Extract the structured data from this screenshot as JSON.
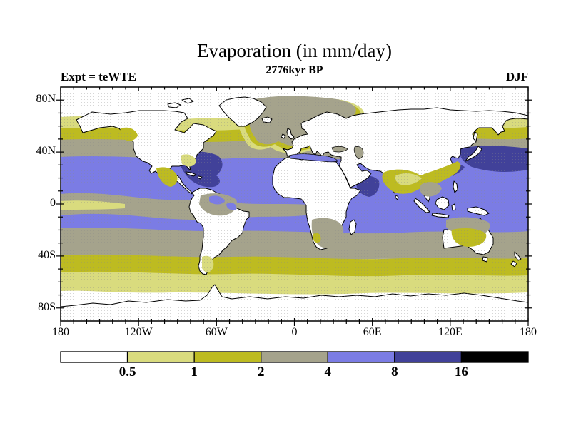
{
  "header": {
    "title": "Evaporation (in mm/day)",
    "subtitle": "2776kyr BP",
    "experiment_label": "Expt = teWTE",
    "season_label": "DJF"
  },
  "map": {
    "x_axis": {
      "tick_labels": [
        "180",
        "120W",
        "60W",
        "0",
        "60E",
        "120E",
        "180"
      ],
      "tick_lons": [
        -180,
        -120,
        -60,
        0,
        60,
        120,
        180
      ],
      "minor_step_deg": 10
    },
    "y_axis": {
      "tick_labels": [
        "80N",
        "40N",
        "0",
        "40S",
        "80S"
      ],
      "tick_lats": [
        80,
        40,
        0,
        -40,
        -80
      ],
      "minor_step_deg": 10
    }
  },
  "colorbar": {
    "boundary_labels": [
      "0.5",
      "1",
      "2",
      "4",
      "8",
      "16"
    ],
    "segment_colors": [
      "#ffffff",
      "#d9db7e",
      "#bdbb21",
      "#a5a38c",
      "#7b7ce4",
      "#414199",
      "#000000"
    ],
    "outline_color": "#000000"
  },
  "palette": {
    "white": "#ffffff",
    "paleYellow": "#d9db7e",
    "olive": "#bdbb21",
    "gray": "#a5a38c",
    "blue": "#7b7ce4",
    "darkBlue": "#414199",
    "black": "#000000",
    "coast": "#000000"
  },
  "chart_data": {
    "type": "heatmap",
    "projection": "equirectangular world map, lon -180..180, lat -90..90",
    "title": "Evaporation (in mm/day)",
    "subtitle": "2776kyr BP",
    "experiment": "teWTE",
    "season": "DJF",
    "units": "mm/day",
    "contour_levels": [
      0.5,
      1,
      2,
      4,
      8,
      16
    ],
    "bins": [
      {
        "range": "< 0.5",
        "color": "#ffffff"
      },
      {
        "range": "0.5 - 1",
        "color": "#d9db7e"
      },
      {
        "range": "1 - 2",
        "color": "#bdbb21"
      },
      {
        "range": "2 - 4",
        "color": "#a5a38c"
      },
      {
        "range": "4 - 8",
        "color": "#7b7ce4"
      },
      {
        "range": "8 - 16",
        "color": "#414199"
      },
      {
        "range": "> 16",
        "color": "#000000"
      }
    ],
    "x_tick_labels": [
      "180",
      "120W",
      "60W",
      "0",
      "60E",
      "120E",
      "180"
    ],
    "y_tick_labels": [
      "80N",
      "40N",
      "0",
      "40S",
      "80S"
    ],
    "zonal_bands": [
      {
        "lat_range": [
          90,
          70
        ],
        "value_mm_day": "< 0.5",
        "note": "Arctic ocean and high-latitude land white"
      },
      {
        "lat_range": [
          70,
          62
        ],
        "value_mm_day": "0.5 - 1"
      },
      {
        "lat_range": [
          62,
          52
        ],
        "value_mm_day": "1 - 2",
        "note": "gray 2-4 extends north over Norwegian/Barents Sea"
      },
      {
        "lat_range": [
          52,
          38
        ],
        "value_mm_day": "2 - 4"
      },
      {
        "lat_range": [
          38,
          0
        ],
        "value_mm_day": "4 - 8",
        "note": "8 - 16 patches: Kuroshio off Japan, Gulf Stream / Caribbean, Arabian Sea, Red Sea"
      },
      {
        "lat_range": [
          0,
          -10
        ],
        "value_mm_day": "2 - 4 in eastern Pacific / Atlantic cold tongues; 4 - 8 in Indian Ocean and west Pacific warm pool"
      },
      {
        "lat_range": [
          -10,
          -28
        ],
        "value_mm_day": "4 - 8"
      },
      {
        "lat_range": [
          -28,
          -43
        ],
        "value_mm_day": "2 - 4"
      },
      {
        "lat_range": [
          -43,
          -55
        ],
        "value_mm_day": "1 - 2"
      },
      {
        "lat_range": [
          -55,
          -66
        ],
        "value_mm_day": "0.5 - 1"
      },
      {
        "lat_range": [
          -66,
          -90
        ],
        "value_mm_day": "< 0.5",
        "note": "Antarctica white"
      },
      {
        "note": "continents mostly < 0.5 (white); 1-4 patches over Amazon, southern Africa, northern/central Australia, South and Southeast Asia, Mexico"
      }
    ]
  }
}
